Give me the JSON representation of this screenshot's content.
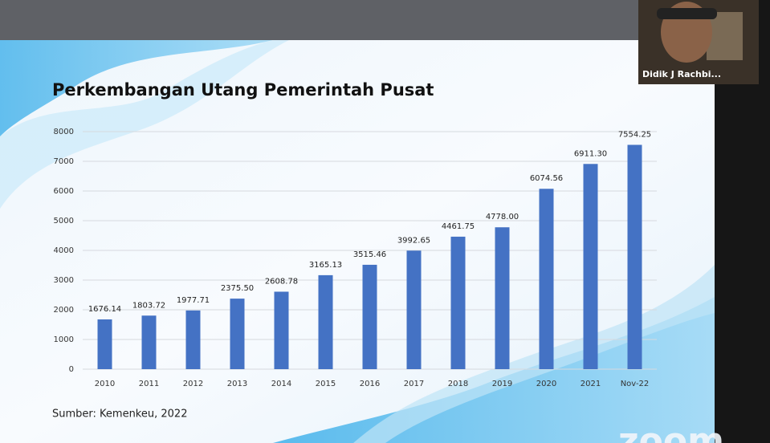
{
  "chart_data": {
    "type": "bar",
    "title": "Perkembangan Utang Pemerintah Pusat",
    "categories": [
      "2010",
      "2011",
      "2012",
      "2013",
      "2014",
      "2015",
      "2016",
      "2017",
      "2018",
      "2019",
      "2020",
      "2021",
      "Nov-22"
    ],
    "values": [
      1676.14,
      1803.72,
      1977.71,
      2375.5,
      2608.78,
      3165.13,
      3515.46,
      3992.65,
      4461.75,
      4778,
      6074.56,
      6911.3,
      7554.25
    ],
    "value_labels": [
      "1676.14",
      "1803.72",
      "1977.71",
      "2375.50",
      "2608.78",
      "3165.13",
      "3515.46",
      "3992.65",
      "4461.75",
      "4778.00",
      "6074.56",
      "6911.30",
      "7554.25"
    ],
    "color": "#4472c4",
    "ylim": [
      0,
      8000
    ],
    "yticks": [
      0,
      1000,
      2000,
      3000,
      4000,
      5000,
      6000,
      7000,
      8000
    ],
    "grid": true,
    "source": "Sumber: Kemenkeu,  2022"
  },
  "participant": {
    "name": "Didik  J Rachbi..."
  },
  "logo": "zoom"
}
